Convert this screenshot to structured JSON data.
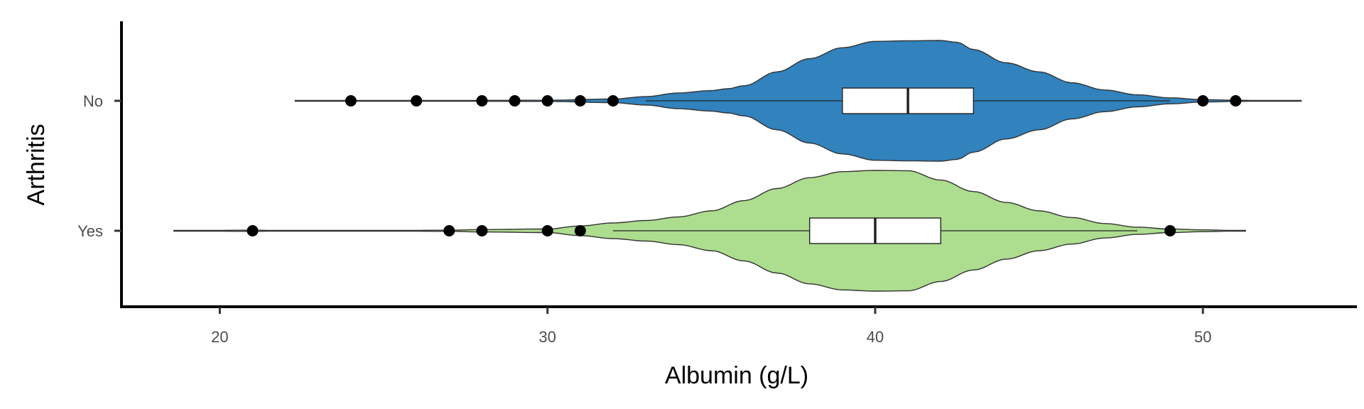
{
  "chart_data": {
    "type": "violin",
    "orientation": "horizontal",
    "xlabel": "Albumin (g/L)",
    "ylabel": "Arthritis",
    "xlim": [
      17,
      54.7
    ],
    "x_ticks": [
      20,
      30,
      40,
      50
    ],
    "categories": [
      "No",
      "Yes"
    ],
    "grid": false,
    "legend": "none",
    "series": [
      {
        "category": "No",
        "color": "#3182bd",
        "range": [
          22.3,
          53.0
        ],
        "density_profile": [
          [
            22.3,
            0.0
          ],
          [
            26,
            0.005
          ],
          [
            30,
            0.01
          ],
          [
            32,
            0.03
          ],
          [
            33,
            0.07
          ],
          [
            34,
            0.13
          ],
          [
            35,
            0.17
          ],
          [
            35.5,
            0.2
          ],
          [
            36,
            0.25
          ],
          [
            37,
            0.48
          ],
          [
            38,
            0.7
          ],
          [
            39,
            0.88
          ],
          [
            40,
            0.985
          ],
          [
            41,
            0.995
          ],
          [
            42,
            1.0
          ],
          [
            42.5,
            0.97
          ],
          [
            43,
            0.85
          ],
          [
            44,
            0.63
          ],
          [
            45,
            0.48
          ],
          [
            46,
            0.3
          ],
          [
            47,
            0.18
          ],
          [
            48,
            0.1
          ],
          [
            49,
            0.05
          ],
          [
            50,
            0.02
          ],
          [
            51,
            0.01
          ],
          [
            52,
            0.003
          ],
          [
            53,
            0.0
          ]
        ],
        "box": {
          "q1": 39,
          "median": 41,
          "q3": 43,
          "whisker_low": 33,
          "whisker_high": 49
        },
        "outliers": [
          24,
          26,
          28,
          29,
          30,
          31,
          32,
          50,
          51
        ]
      },
      {
        "category": "Yes",
        "color": "#addd8e",
        "range": [
          18.6,
          51.3
        ],
        "density_profile": [
          [
            18.6,
            0.0
          ],
          [
            21,
            0.01
          ],
          [
            22,
            0.004
          ],
          [
            25,
            0.003
          ],
          [
            27,
            0.01
          ],
          [
            28,
            0.02
          ],
          [
            30,
            0.03
          ],
          [
            31,
            0.08
          ],
          [
            32,
            0.13
          ],
          [
            33,
            0.17
          ],
          [
            34,
            0.23
          ],
          [
            35,
            0.33
          ],
          [
            36,
            0.5
          ],
          [
            37,
            0.7
          ],
          [
            38,
            0.88
          ],
          [
            39,
            0.98
          ],
          [
            40,
            1.0
          ],
          [
            41,
            0.995
          ],
          [
            42,
            0.84
          ],
          [
            43,
            0.65
          ],
          [
            44,
            0.47
          ],
          [
            45,
            0.33
          ],
          [
            46,
            0.22
          ],
          [
            47,
            0.12
          ],
          [
            48,
            0.06
          ],
          [
            49,
            0.03
          ],
          [
            50,
            0.015
          ],
          [
            51,
            0.005
          ],
          [
            51.3,
            0.0
          ]
        ],
        "box": {
          "q1": 38,
          "median": 40,
          "q3": 42,
          "whisker_low": 32,
          "whisker_high": 48
        },
        "outliers": [
          21,
          27,
          28,
          30,
          31,
          49
        ]
      }
    ]
  }
}
